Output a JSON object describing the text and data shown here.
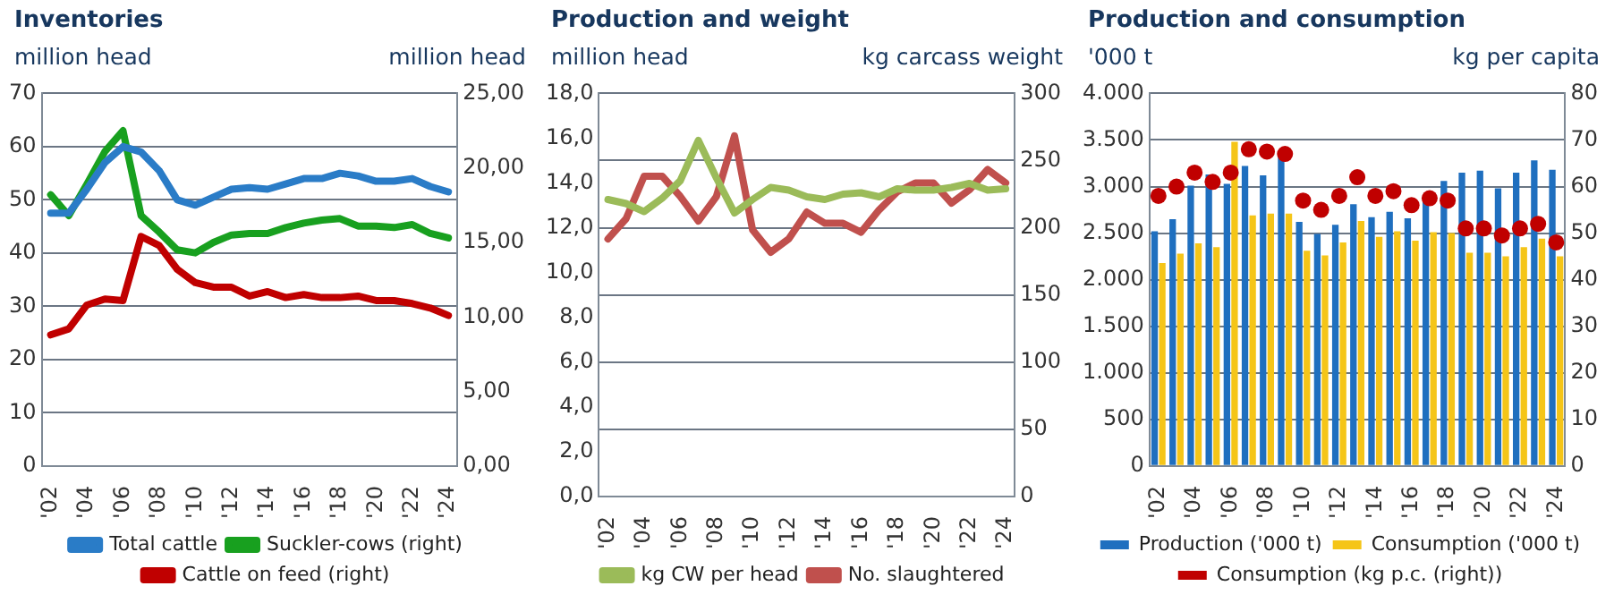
{
  "chart_data": [
    {
      "type": "line",
      "title": "Inventories",
      "ylabel": "million head",
      "y2label": "million head",
      "categories": [
        "'02",
        null,
        "'04",
        null,
        "'06",
        null,
        "'08",
        null,
        "'10",
        null,
        "'12",
        null,
        "'14",
        null,
        "'16",
        null,
        "'18",
        null,
        "'20",
        null,
        "'22",
        null,
        "'24"
      ],
      "series": [
        {
          "name": "Total cattle",
          "color": "#2a7cc7",
          "values": [
            47.5,
            47.5,
            52,
            57,
            60,
            59,
            55.5,
            50,
            49,
            50.5,
            52,
            52.3,
            52,
            53,
            54,
            54,
            55,
            54.5,
            53.5,
            53.5,
            54,
            52.5,
            51.5
          ]
        },
        {
          "name": "Suckler-cows (right)",
          "color": "#18a01f",
          "axis": "y2",
          "values": [
            18.2,
            16.8,
            18.9,
            21.1,
            22.5,
            16.8,
            15.7,
            14.5,
            14.3,
            15.0,
            15.5,
            15.6,
            15.6,
            16.0,
            16.3,
            16.5,
            16.6,
            16.1,
            16.1,
            16.0,
            16.2,
            15.6,
            15.3
          ]
        },
        {
          "name": "Cattle on feed (right)",
          "color": "#c00000",
          "axis": "y2",
          "values": [
            8.8,
            9.2,
            10.8,
            11.2,
            11.1,
            15.4,
            14.8,
            13.2,
            12.3,
            12.0,
            12.0,
            11.4,
            11.7,
            11.3,
            11.5,
            11.3,
            11.3,
            11.4,
            11.1,
            11.1,
            10.9,
            10.6,
            10.1
          ]
        }
      ],
      "ylim": [
        0,
        70
      ],
      "yticks": [
        0,
        10,
        20,
        30,
        40,
        50,
        60,
        70
      ],
      "y2lim": [
        0,
        25
      ],
      "y2ticks": [
        {
          "value": 0,
          "label": "0,00"
        },
        {
          "value": 5,
          "label": "5,00"
        },
        {
          "value": 10,
          "label": "10,00"
        },
        {
          "value": 15,
          "label": "15,00"
        },
        {
          "value": 20,
          "label": "20,00"
        },
        {
          "value": 25,
          "label": "25,00"
        }
      ],
      "grid": "y",
      "legend": "bottom"
    },
    {
      "type": "line",
      "title": "Production and weight",
      "ylabel": "million head",
      "y2label": "kg carcass weight",
      "categories": [
        "'02",
        null,
        "'04",
        null,
        "'06",
        null,
        "'08",
        null,
        "'10",
        null,
        "'12",
        null,
        "'14",
        null,
        "'16",
        null,
        "'18",
        null,
        "'20",
        null,
        "'22",
        null,
        "'24"
      ],
      "series": [
        {
          "name": "kg CW per head",
          "color": "#9bbb59",
          "axis": "y2",
          "values": [
            221,
            218,
            212,
            222,
            235,
            265,
            237,
            211,
            221,
            230,
            228,
            223,
            221,
            225,
            226,
            223,
            229,
            228,
            228,
            230,
            233,
            228,
            229
          ]
        },
        {
          "name": "No. slaughtered",
          "color": "#c0504d",
          "values": [
            11.5,
            12.4,
            14.3,
            14.3,
            13.4,
            12.3,
            13.4,
            16.1,
            11.9,
            10.9,
            11.5,
            12.7,
            12.2,
            12.2,
            11.8,
            12.8,
            13.6,
            14.0,
            14.0,
            13.1,
            13.7,
            14.6,
            14.0
          ]
        }
      ],
      "ylim": [
        0,
        18
      ],
      "yticks": [
        {
          "value": 0,
          "label": "0,0"
        },
        {
          "value": 2,
          "label": "2,0"
        },
        {
          "value": 4,
          "label": "4,0"
        },
        {
          "value": 6,
          "label": "6,0"
        },
        {
          "value": 8,
          "label": "8,0"
        },
        {
          "value": 10,
          "label": "10,0"
        },
        {
          "value": 12,
          "label": "12,0"
        },
        {
          "value": 14,
          "label": "14,0"
        },
        {
          "value": 16,
          "label": "16,0"
        },
        {
          "value": 18,
          "label": "18,0"
        }
      ],
      "y2lim": [
        0,
        300
      ],
      "y2ticks": [
        0,
        50,
        100,
        150,
        200,
        250,
        300
      ],
      "grid": "y",
      "legend": "bottom"
    },
    {
      "type": "bar",
      "title": "Production and consumption",
      "ylabel": "'000 t",
      "y2label": "kg per capita",
      "categories": [
        "'02",
        null,
        "'04",
        null,
        "'06",
        null,
        "'08",
        null,
        "'10",
        null,
        "'12",
        null,
        "'14",
        null,
        "'16",
        null,
        "'18",
        null,
        "'20",
        null,
        "'22",
        null,
        "'24"
      ],
      "series": [
        {
          "name": "Production ('000 t)",
          "color": "#1f6fbf",
          "values": [
            2520,
            2650,
            3010,
            3130,
            3030,
            3220,
            3120,
            3330,
            2620,
            2490,
            2590,
            2810,
            2670,
            2730,
            2660,
            2840,
            3060,
            3150,
            3170,
            2980,
            3150,
            3280,
            3180
          ]
        },
        {
          "name": "Consumption ('000 t)",
          "color": "#f5c518",
          "values": [
            2180,
            2280,
            2390,
            2350,
            3480,
            2690,
            2710,
            2710,
            2310,
            2260,
            2400,
            2630,
            2460,
            2520,
            2420,
            2510,
            2500,
            2290,
            2290,
            2250,
            2350,
            2440,
            2250
          ]
        },
        {
          "name": "Consumption (kg p.c. (right))",
          "color": "#c00000",
          "type": "scatter",
          "axis": "y2",
          "values": [
            58,
            60,
            63,
            61,
            63,
            68,
            67.5,
            67,
            57,
            55,
            58,
            62,
            58,
            59,
            56,
            57.5,
            57,
            51,
            51,
            49.5,
            51,
            52,
            48
          ]
        }
      ],
      "ylim": [
        0,
        4000
      ],
      "yticks": [
        0,
        500,
        {
          "value": 1000,
          "label": "1.000"
        },
        {
          "value": 1500,
          "label": "1.500"
        },
        {
          "value": 2000,
          "label": "2.000"
        },
        {
          "value": 2500,
          "label": "2.500"
        },
        {
          "value": 3000,
          "label": "3.000"
        },
        {
          "value": 3500,
          "label": "3.500"
        },
        {
          "value": 4000,
          "label": "4.000"
        }
      ],
      "y2lim": [
        0,
        80
      ],
      "y2ticks": [
        0,
        10,
        20,
        30,
        40,
        50,
        60,
        70,
        80
      ],
      "grid": "y",
      "legend": "bottom",
      "marker": "circle"
    }
  ]
}
